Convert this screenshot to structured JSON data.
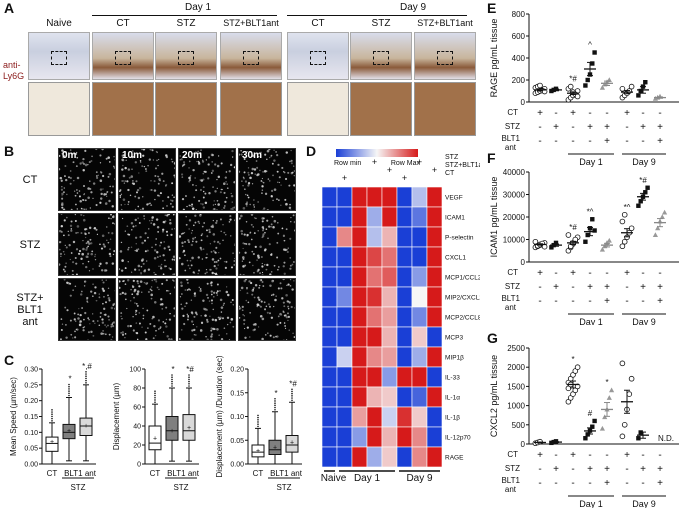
{
  "panelA": {
    "letter": "A",
    "day1": "Day 1",
    "day9": "Day 9",
    "cols": [
      "Naive",
      "CT",
      "STZ",
      "STZ+BLT1ant",
      "CT",
      "STZ",
      "STZ+BLT1ant"
    ],
    "row_label": "anti-\nLy6G",
    "colors": {
      "label_red": "#8b1a1a"
    }
  },
  "panelB": {
    "letter": "B",
    "times": [
      "0m",
      "10m",
      "20m",
      "30m"
    ],
    "rows": [
      "CT",
      "STZ",
      "STZ+\nBLT1\nant"
    ]
  },
  "panelC": {
    "letter": "C",
    "plots": [
      {
        "ylabel": "Mean Speed (µm/sec)",
        "yticks": [
          "0.00",
          "0.05",
          "0.10",
          "0.15",
          "0.20",
          "0.25",
          "0.30"
        ],
        "ymax": 0.3,
        "boxes": [
          {
            "q1": 0.04,
            "med": 0.065,
            "q3": 0.085,
            "lo": 0.0,
            "hi": 0.13,
            "mean": 0.07
          },
          {
            "q1": 0.08,
            "med": 0.1,
            "q3": 0.125,
            "lo": 0.01,
            "hi": 0.21,
            "mean": 0.105
          },
          {
            "q1": 0.09,
            "med": 0.12,
            "q3": 0.145,
            "lo": 0.01,
            "hi": 0.25,
            "mean": 0.12
          }
        ],
        "marks": [
          "",
          "*",
          "*,#"
        ]
      },
      {
        "ylabel": "Displacement (µm)",
        "yticks": [
          "0",
          "20",
          "40",
          "60",
          "80",
          "100"
        ],
        "ymax": 100,
        "boxes": [
          {
            "q1": 15,
            "med": 22,
            "q3": 40,
            "lo": 0,
            "hi": 63,
            "mean": 27
          },
          {
            "q1": 25,
            "med": 35,
            "q3": 50,
            "lo": 3,
            "hi": 80,
            "mean": 35
          },
          {
            "q1": 25,
            "med": 35,
            "q3": 52,
            "lo": 3,
            "hi": 80,
            "mean": 38
          }
        ],
        "marks": [
          "",
          "*",
          "*#"
        ]
      },
      {
        "ylabel": "Displacement (µm) /Duration (sec)",
        "yticks": [
          "0.00",
          "0.05",
          "0.10",
          "0.15",
          "0.20"
        ],
        "ymax": 0.2,
        "boxes": [
          {
            "q1": 0.015,
            "med": 0.025,
            "q3": 0.04,
            "lo": 0.0,
            "hi": 0.075,
            "mean": 0.027
          },
          {
            "q1": 0.02,
            "med": 0.03,
            "q3": 0.05,
            "lo": 0.0,
            "hi": 0.11,
            "mean": 0.035
          },
          {
            "q1": 0.025,
            "med": 0.04,
            "q3": 0.06,
            "lo": 0.0,
            "hi": 0.13,
            "mean": 0.045
          }
        ],
        "marks": [
          "",
          "*",
          "*#"
        ]
      }
    ],
    "ct": "CT",
    "blt1ant": "BLT1 ant",
    "stz": "STZ",
    "colors": {
      "ct": "#ffffff",
      "stz": "#7f7f7f",
      "blt": "#d9d9d9"
    }
  },
  "panelD": {
    "letter": "D",
    "legend_min": "Row min",
    "legend_max": "Row Max",
    "markers": [
      "STZ",
      "STZ+BLT1ant",
      "CT"
    ],
    "rows": [
      "VEGF",
      "ICAM1",
      "P-selectin",
      "CXCL1",
      "MCP1/CCL2",
      "MIP2/CXCL2",
      "MCP2/CCL8",
      "MCP3",
      "MIP1β",
      "IL-33",
      "IL-1α",
      "IL-1β",
      "IL-12p70",
      "RAGE"
    ],
    "groups": [
      "Naive",
      "Day 1",
      "Day 9"
    ],
    "heatmap": [
      [
        -1,
        -1,
        1,
        1,
        1,
        -1,
        -0.3,
        1
      ],
      [
        -1,
        -1,
        1,
        -0.4,
        1,
        -1,
        -0.7,
        1
      ],
      [
        -1,
        0.5,
        1,
        -0.3,
        0.3,
        -1,
        -1,
        1
      ],
      [
        -1,
        -1,
        1,
        0.8,
        0.6,
        -1,
        -1,
        1
      ],
      [
        -1,
        -1,
        1,
        0.6,
        0.7,
        -1,
        -0.5,
        1
      ],
      [
        -1,
        -0.6,
        1,
        0.9,
        0.3,
        -1,
        0.0,
        1
      ],
      [
        -1,
        -1,
        1,
        0.6,
        0.4,
        -1,
        -0.6,
        1
      ],
      [
        -1,
        -1,
        1,
        1,
        0.3,
        -1,
        0.2,
        -1
      ],
      [
        -1,
        -0.2,
        1,
        0.5,
        0.4,
        -1,
        -0.4,
        1
      ],
      [
        -1,
        -1,
        1,
        1,
        -0.5,
        1,
        1,
        -1
      ],
      [
        -1,
        -1,
        1,
        0.3,
        0.2,
        -1,
        -0.8,
        1
      ],
      [
        -1,
        -1,
        0.4,
        1,
        -0.2,
        0.9,
        0.2,
        -1
      ],
      [
        -1,
        -1,
        -0.5,
        1,
        0.3,
        1,
        0.5,
        -1
      ],
      [
        -1,
        -1,
        1,
        -0.4,
        0.2,
        -1,
        0.5,
        1
      ]
    ],
    "colors": {
      "low": "#1a3fd6",
      "mid": "#f6f6f6",
      "high": "#d61a1a"
    }
  },
  "panelE": {
    "letter": "E",
    "ylabel": "RAGE pg/mL tissue",
    "yticks": [
      "0",
      "200",
      "400",
      "600",
      "800"
    ],
    "ymax": 800,
    "groups": [
      {
        "pts": [
          80,
          90,
          100,
          110,
          120,
          130,
          140,
          150,
          105,
          95
        ],
        "mean": 110,
        "sem": 10,
        "shape": "circle",
        "fill": "#ffffff"
      },
      {
        "pts": [
          100,
          110,
          120
        ],
        "mean": 110,
        "sem": 8,
        "shape": "square",
        "fill": "#111111"
      },
      {
        "pts": [
          20,
          40,
          60,
          80,
          100,
          120,
          140,
          90,
          70,
          50
        ],
        "mean": 80,
        "sem": 12,
        "shape": "circle",
        "fill": "#ffffff"
      },
      {
        "pts": [
          150,
          200,
          250,
          350,
          450
        ],
        "mean": 300,
        "sem": 60,
        "shape": "square",
        "fill": "#111111"
      },
      {
        "pts": [
          130,
          160,
          180,
          200
        ],
        "mean": 170,
        "sem": 20,
        "shape": "triangle",
        "fill": "#999999"
      },
      {
        "pts": [
          40,
          60,
          80,
          100,
          140,
          120
        ],
        "mean": 90,
        "sem": 15,
        "shape": "circle",
        "fill": "#ffffff"
      },
      {
        "pts": [
          60,
          100,
          140,
          180
        ],
        "mean": 110,
        "sem": 30,
        "shape": "square",
        "fill": "#111111"
      },
      {
        "pts": [
          30,
          40,
          50
        ],
        "mean": 40,
        "sem": 6,
        "shape": "triangle",
        "fill": "#999999"
      }
    ],
    "marks": [
      "",
      "",
      "*#",
      "^",
      "",
      "",
      "",
      ""
    ]
  },
  "panelF": {
    "letter": "F",
    "ylabel": "ICAM1 pg/mL tissue",
    "yticks": [
      "0",
      "10000",
      "20000",
      "30000",
      "40000"
    ],
    "ymax": 40000,
    "groups": [
      {
        "pts": [
          6500,
          7000,
          7500,
          8000,
          8500,
          9000,
          7200,
          7800,
          8200,
          6800
        ],
        "mean": 7800,
        "sem": 300,
        "shape": "circle",
        "fill": "#ffffff"
      },
      {
        "pts": [
          6500,
          7500,
          8500
        ],
        "mean": 7500,
        "sem": 500,
        "shape": "square",
        "fill": "#111111"
      },
      {
        "pts": [
          5000,
          6500,
          8000,
          9500,
          11000,
          12000,
          7000,
          8500,
          10000
        ],
        "mean": 8500,
        "sem": 700,
        "shape": "circle",
        "fill": "#ffffff"
      },
      {
        "pts": [
          9000,
          12000,
          15000,
          19000,
          14000
        ],
        "mean": 13500,
        "sem": 1800,
        "shape": "square",
        "fill": "#111111"
      },
      {
        "pts": [
          5500,
          7000,
          8500,
          9500
        ],
        "mean": 7500,
        "sem": 800,
        "shape": "triangle",
        "fill": "#999999"
      },
      {
        "pts": [
          7000,
          9000,
          11000,
          13000,
          15000,
          18000,
          21000
        ],
        "mean": 13000,
        "sem": 1800,
        "shape": "circle",
        "fill": "#ffffff"
      },
      {
        "pts": [
          25000,
          27000,
          29000,
          31000,
          33000
        ],
        "mean": 29000,
        "sem": 1500,
        "shape": "square",
        "fill": "#111111"
      },
      {
        "pts": [
          12000,
          15000,
          18000,
          20000,
          22000
        ],
        "mean": 17500,
        "sem": 1800,
        "shape": "triangle",
        "fill": "#999999"
      }
    ],
    "marks": [
      "",
      "",
      "*#",
      "*^",
      "",
      "*^",
      "*#",
      ""
    ]
  },
  "panelG": {
    "letter": "G",
    "ylabel": "CXCL2 pg/mL tissue",
    "yticks": [
      "0",
      "500",
      "1000",
      "1500",
      "2000",
      "2500"
    ],
    "ymax": 2500,
    "groups": [
      {
        "pts": [
          20,
          40,
          60
        ],
        "mean": 40,
        "sem": 10,
        "shape": "circle",
        "fill": "#ffffff"
      },
      {
        "pts": [
          30,
          50,
          70
        ],
        "mean": 50,
        "sem": 10,
        "shape": "square",
        "fill": "#111111"
      },
      {
        "pts": [
          1100,
          1200,
          1300,
          1400,
          1500,
          1600,
          1700,
          1800,
          1900,
          2000,
          1450,
          1550
        ],
        "mean": 1550,
        "sem": 90,
        "shape": "circle",
        "fill": "#ffffff"
      },
      {
        "pts": [
          150,
          250,
          350,
          450,
          600
        ],
        "mean": 340,
        "sem": 80,
        "shape": "square",
        "fill": "#111111"
      },
      {
        "pts": [
          400,
          700,
          900,
          1200,
          1400
        ],
        "mean": 900,
        "sem": 180,
        "shape": "triangle",
        "fill": "#999999"
      },
      {
        "pts": [
          200,
          500,
          900,
          1300,
          1700,
          2100
        ],
        "mean": 1100,
        "sem": 300,
        "shape": "circle",
        "fill": "#ffffff"
      },
      {
        "pts": [
          150,
          300
        ],
        "mean": 230,
        "sem": 80,
        "shape": "square",
        "fill": "#111111"
      },
      {
        "pts": [],
        "mean": null,
        "sem": 0,
        "shape": "triangle",
        "fill": "#999999"
      }
    ],
    "marks": [
      "",
      "",
      "*",
      "#",
      "*",
      "",
      "",
      ""
    ],
    "nd": "N.D."
  },
  "groupTable": {
    "ct": "CT",
    "stz": "STZ",
    "blt": "BLT1\nant",
    "day1": "Day 1",
    "day9": "Day 9",
    "ct_row": [
      "+",
      "",
      "+",
      "",
      "",
      "+",
      "",
      ""
    ],
    "stz_row": [
      "",
      "+",
      "",
      "+",
      "+",
      "",
      "+",
      "+"
    ],
    "blt_row": [
      "",
      "",
      "",
      "",
      "+",
      "",
      "",
      "+"
    ],
    "stz_row_neg": [
      "-",
      "",
      "-",
      "",
      "",
      "-",
      "",
      ""
    ],
    "ct_row_neg": [
      "",
      "-",
      "",
      "-",
      "-",
      "",
      "-",
      "-"
    ],
    "blt_row_neg": [
      "-",
      "-",
      "-",
      "-",
      "",
      "-",
      "-",
      ""
    ]
  }
}
